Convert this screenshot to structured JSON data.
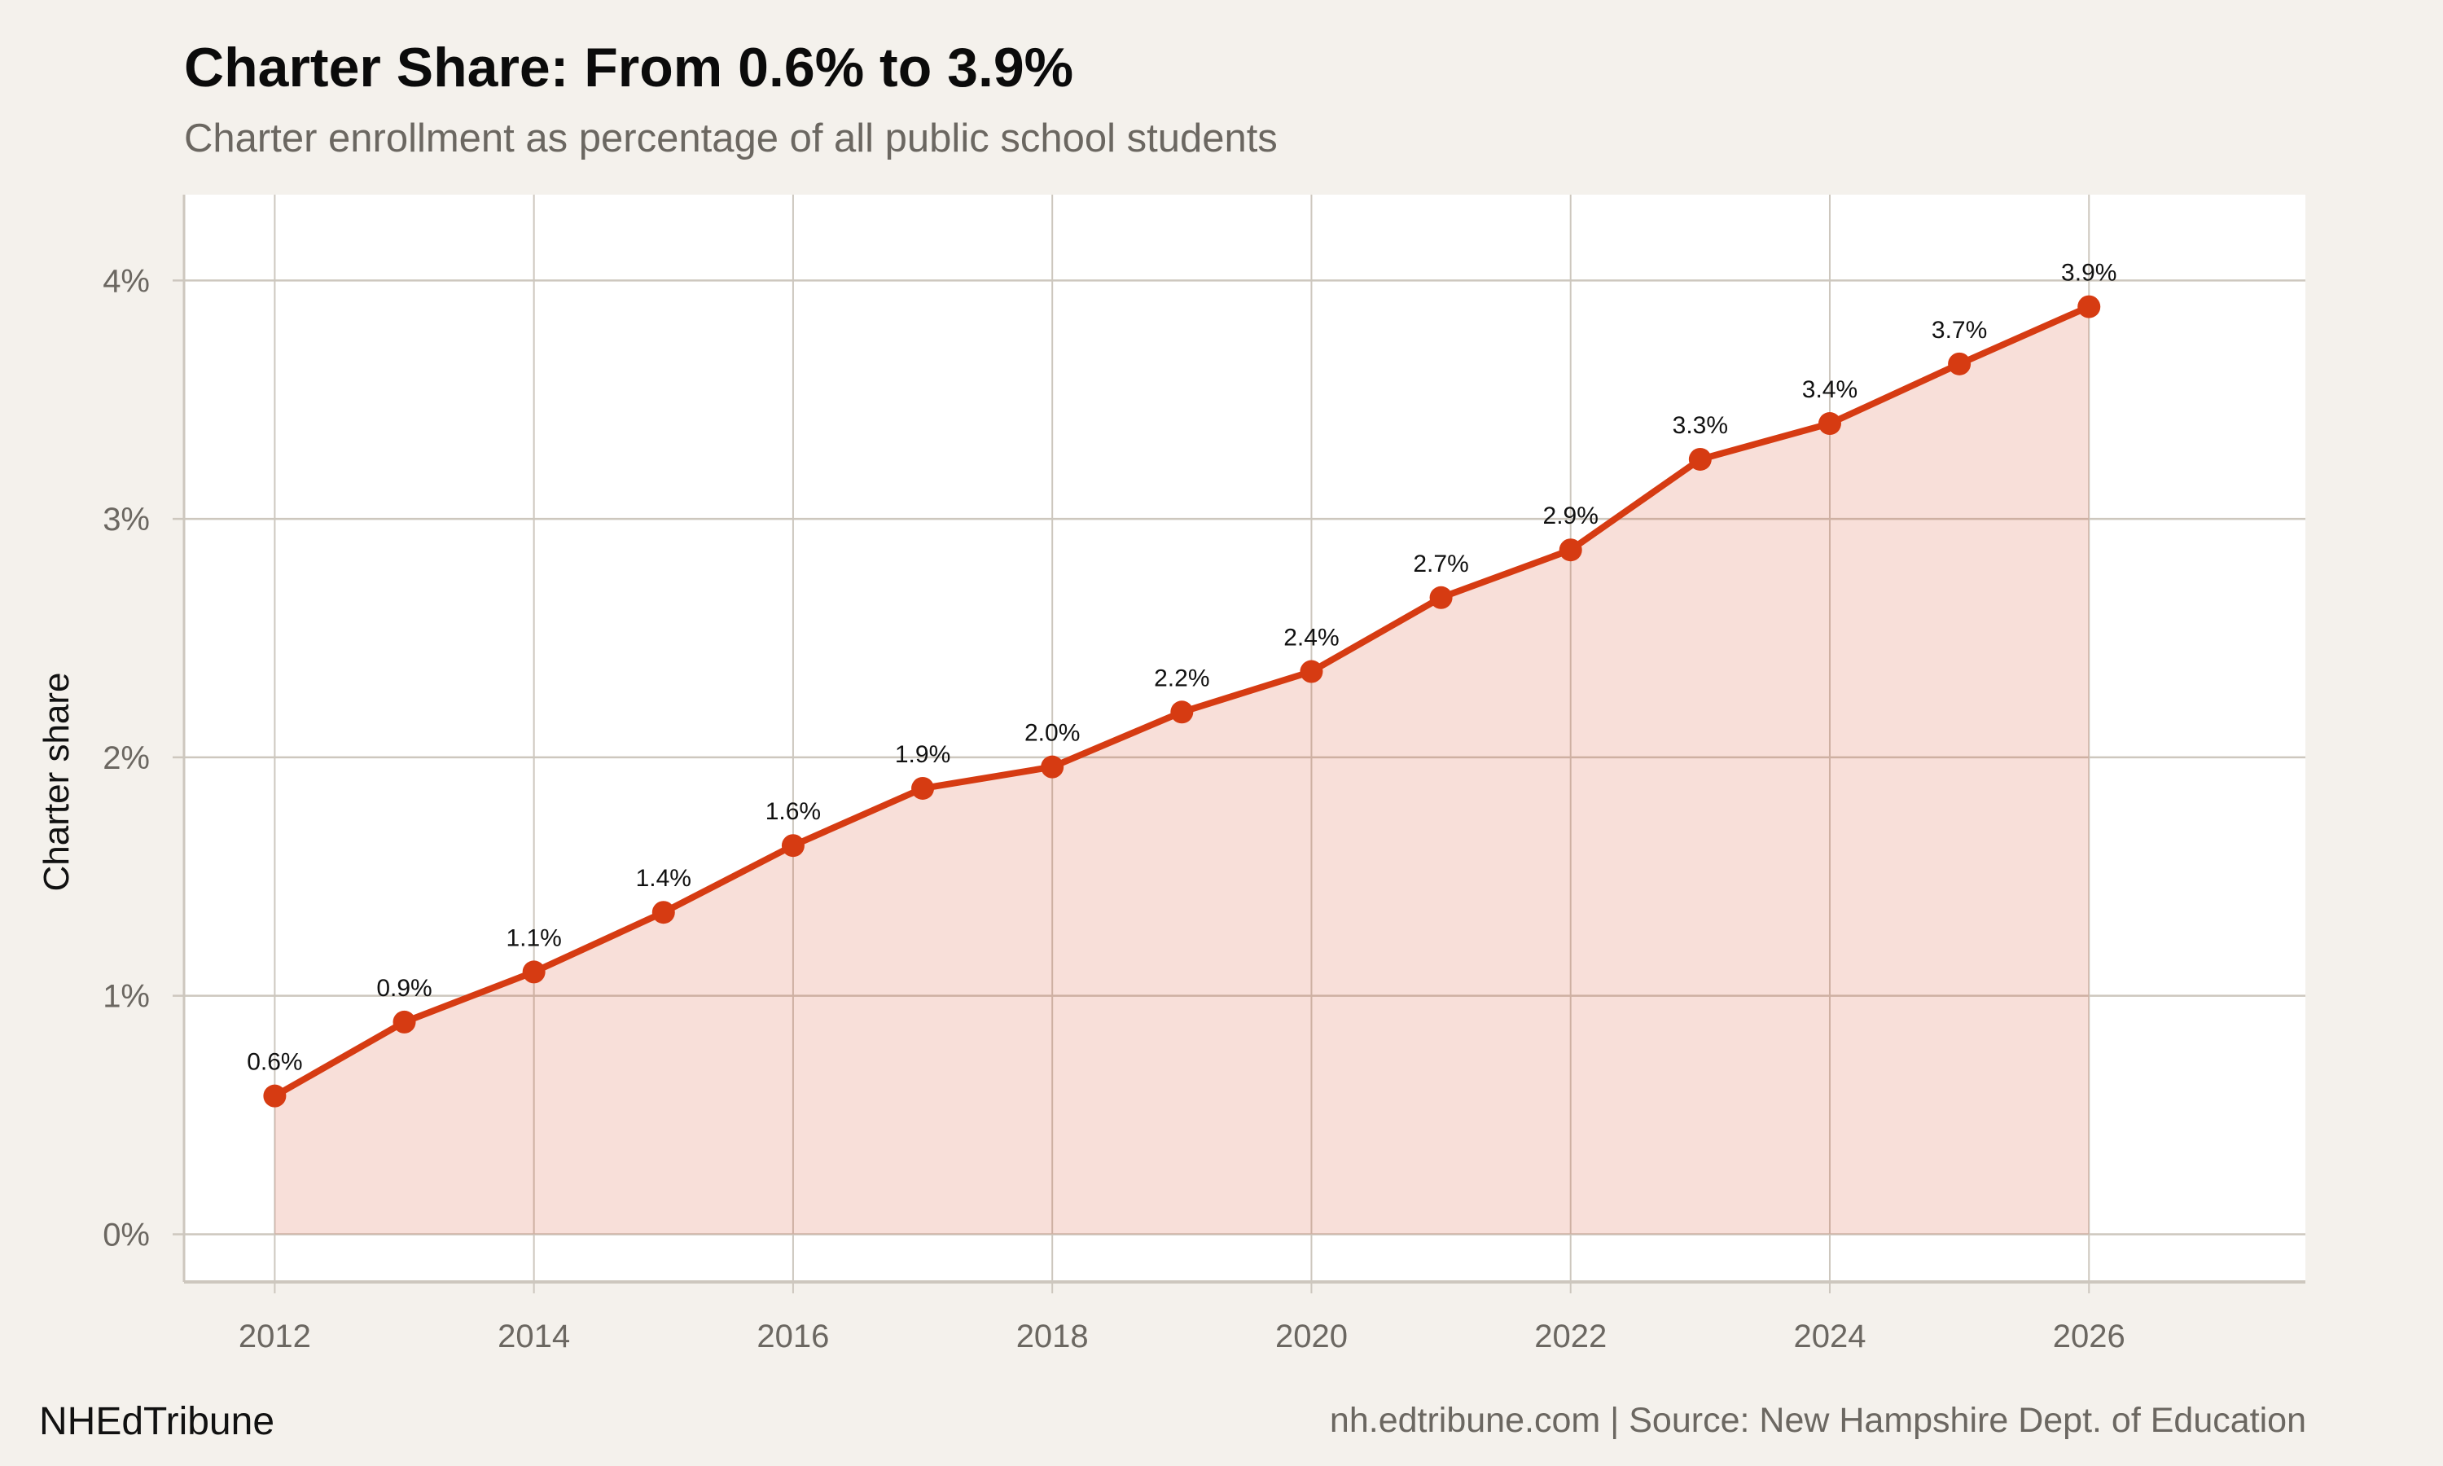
{
  "chart_data": {
    "type": "line",
    "title": "Charter Share: From 0.6% to 3.9%",
    "subtitle": "Charter enrollment as percentage of all public school students",
    "xlabel": "",
    "ylabel": "Charter share",
    "x": [
      2012,
      2013,
      2014,
      2015,
      2016,
      2017,
      2018,
      2019,
      2020,
      2021,
      2022,
      2023,
      2024,
      2025,
      2026
    ],
    "values": [
      0.58,
      0.89,
      1.1,
      1.35,
      1.63,
      1.87,
      1.96,
      2.19,
      2.36,
      2.67,
      2.87,
      3.25,
      3.4,
      3.65,
      3.89
    ],
    "data_labels": [
      "0.6%",
      "0.9%",
      "1.1%",
      "1.4%",
      "1.6%",
      "1.9%",
      "2.0%",
      "2.2%",
      "2.4%",
      "2.7%",
      "2.9%",
      "3.3%",
      "3.4%",
      "3.7%",
      "3.9%"
    ],
    "xlim": [
      2011.3,
      2027.67
    ],
    "ylim": [
      -0.2,
      4.36
    ],
    "x_ticks": [
      2012,
      2014,
      2016,
      2018,
      2020,
      2022,
      2024,
      2026
    ],
    "x_tick_labels": [
      "2012",
      "2014",
      "2016",
      "2018",
      "2020",
      "2022",
      "2024",
      "2026"
    ],
    "y_ticks": [
      0,
      1,
      2,
      3,
      4
    ],
    "y_tick_labels": [
      "0%",
      "1%",
      "2%",
      "3%",
      "4%"
    ],
    "grid": true,
    "area_fill": true,
    "colors": {
      "line": "#d63b12",
      "fill": "#f6ded8",
      "grid": "#cdc7be",
      "background": "#f4f1ec",
      "panel": "#ffffff"
    }
  },
  "footer": {
    "brand": "NHEdTribune",
    "source": "nh.edtribune.com | Source: New Hampshire Dept. of Education"
  }
}
